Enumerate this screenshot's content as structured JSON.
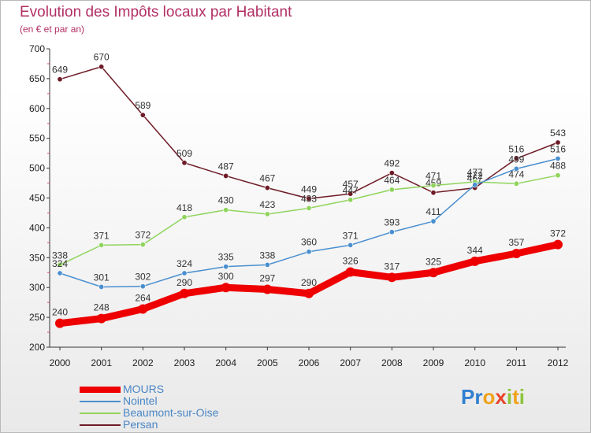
{
  "header": {
    "title": "Evolution des Impôts locaux par Habitant",
    "subtitle": "(en € et par an)"
  },
  "chart_data": {
    "type": "line",
    "title": "Evolution des Impôts locaux par Habitant",
    "subtitle": "(en € et par an)",
    "x": [
      "2000",
      "2001",
      "2002",
      "2003",
      "2004",
      "2005",
      "2006",
      "2007",
      "2008",
      "2009",
      "2010",
      "2011",
      "2012"
    ],
    "ylim": [
      200,
      700
    ],
    "yticks": [
      200,
      250,
      300,
      350,
      400,
      450,
      500,
      550,
      600,
      650,
      700
    ],
    "grid": false,
    "legend_position": "bottom-left",
    "series": [
      {
        "name": "MOURS",
        "color": "#ee0000",
        "values": [
          240,
          248,
          264,
          290,
          300,
          297,
          290,
          326,
          317,
          325,
          344,
          357,
          372
        ]
      },
      {
        "name": "Nointel",
        "color": "#4a8fcf",
        "values": [
          324,
          301,
          302,
          324,
          335,
          338,
          360,
          371,
          393,
          411,
          472,
          499,
          516
        ]
      },
      {
        "name": "Beaumont-sur-Oise",
        "color": "#8fd45c",
        "values": [
          338,
          371,
          372,
          418,
          430,
          423,
          433,
          447,
          464,
          471,
          477,
          474,
          488
        ]
      },
      {
        "name": "Persan",
        "color": "#6e1b26",
        "values": [
          649,
          670,
          589,
          509,
          487,
          467,
          449,
          457,
          492,
          459,
          467,
          516,
          543
        ]
      }
    ]
  },
  "logo": {
    "letters": [
      {
        "ch": "P",
        "color": "#2f7fd0"
      },
      {
        "ch": "r",
        "color": "#2f7fd0"
      },
      {
        "ch": "o",
        "color": "#f0a21b"
      },
      {
        "ch": "x",
        "color": "#e8452a"
      },
      {
        "ch": "i",
        "color": "#8cc43c"
      },
      {
        "ch": "t",
        "color": "#f0a21b"
      },
      {
        "ch": "i",
        "color": "#8cc43c"
      }
    ]
  }
}
